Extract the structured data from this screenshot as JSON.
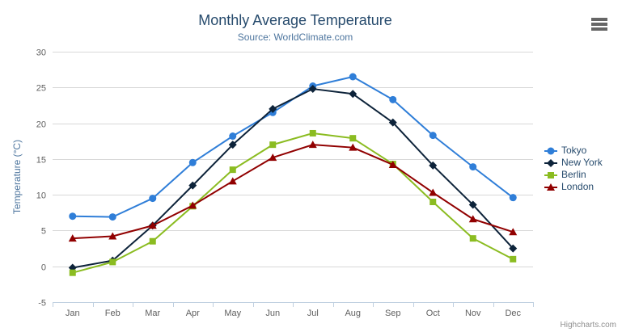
{
  "colors": {
    "background": "#ffffff",
    "title": "#274b6d",
    "subtitle": "#4d759e",
    "axis_labels": "#606060",
    "axis_line": "#c0d0e0",
    "gridline": "#d8d8d8",
    "legend_text": "#274b6d",
    "credits": "#909090",
    "menu_icon": "#666666"
  },
  "credits": {
    "label": "Highcharts.com"
  },
  "chart_data": {
    "type": "line",
    "title": "Monthly Average Temperature",
    "subtitle": "Source: WorldClimate.com",
    "categories": [
      "Jan",
      "Feb",
      "Mar",
      "Apr",
      "May",
      "Jun",
      "Jul",
      "Aug",
      "Sep",
      "Oct",
      "Nov",
      "Dec"
    ],
    "xlabel": "",
    "ylabel": "Temperature (°C)",
    "ylim": [
      -5,
      30
    ],
    "ytick_interval": 5,
    "ytick_labels": [
      "-5",
      "0",
      "5",
      "10",
      "15",
      "20",
      "25",
      "30"
    ],
    "grid": "horizontal",
    "legend_position": "right-middle",
    "series": [
      {
        "name": "Tokyo",
        "color": "#2f7ed8",
        "marker": "circle",
        "values": [
          7.0,
          6.9,
          9.5,
          14.5,
          18.2,
          21.5,
          25.2,
          26.5,
          23.3,
          18.3,
          13.9,
          9.6
        ]
      },
      {
        "name": "New York",
        "color": "#0d233a",
        "marker": "diamond",
        "values": [
          -0.2,
          0.8,
          5.7,
          11.3,
          17.0,
          22.0,
          24.8,
          24.1,
          20.1,
          14.1,
          8.6,
          2.5
        ]
      },
      {
        "name": "Berlin",
        "color": "#8bbc21",
        "marker": "square",
        "values": [
          -0.9,
          0.6,
          3.5,
          8.4,
          13.5,
          17.0,
          18.6,
          17.9,
          14.3,
          9.0,
          3.9,
          1.0
        ]
      },
      {
        "name": "London",
        "color": "#910000",
        "marker": "triangle",
        "values": [
          3.9,
          4.2,
          5.7,
          8.5,
          11.9,
          15.2,
          17.0,
          16.6,
          14.2,
          10.3,
          6.6,
          4.8
        ]
      }
    ]
  }
}
